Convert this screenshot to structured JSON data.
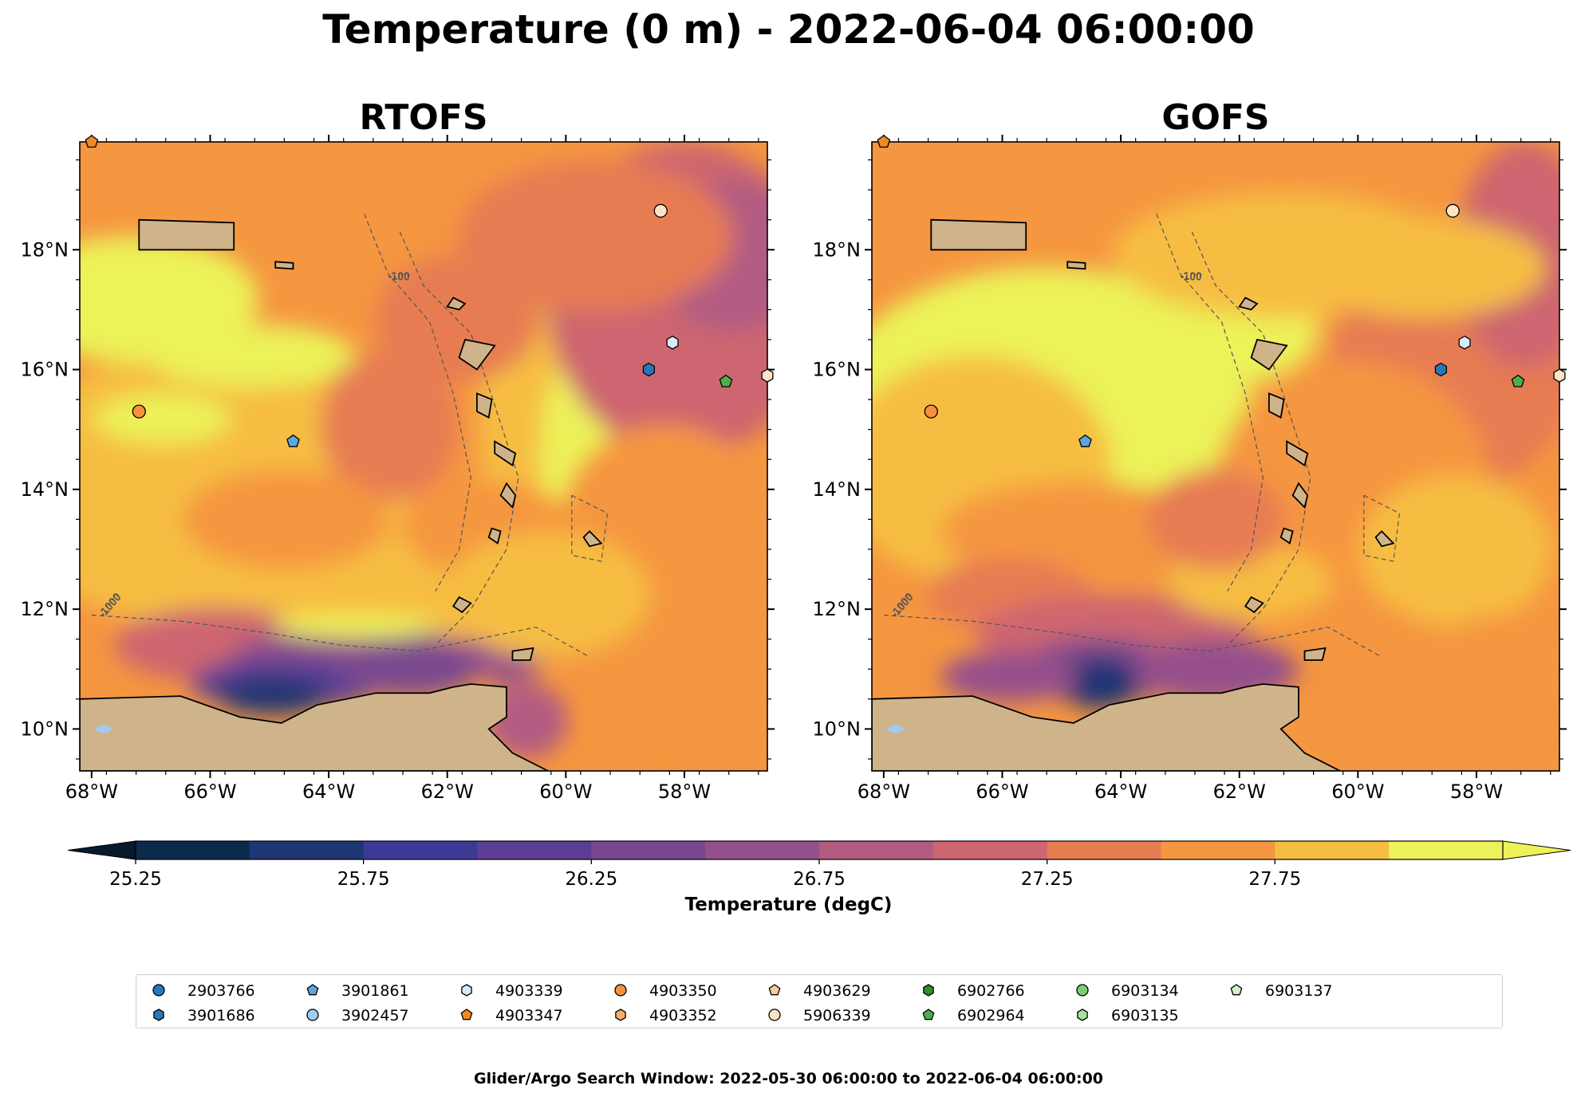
{
  "title": "Temperature (0 m) - 2022-06-04 06:00:00",
  "panels": [
    {
      "title": "RTOFS"
    },
    {
      "title": "GOFS"
    }
  ],
  "map": {
    "lon_range": [
      -68.2,
      -56.6
    ],
    "lat_range": [
      9.3,
      19.8
    ],
    "lon_ticks": [
      -68,
      -66,
      -64,
      -62,
      -60,
      -58
    ],
    "lon_tick_labels": [
      "68°W",
      "66°W",
      "64°W",
      "62°W",
      "60°W",
      "58°W"
    ],
    "lat_ticks": [
      10,
      12,
      14,
      16,
      18
    ],
    "lat_tick_labels": [
      "10°N",
      "12°N",
      "14°N",
      "16°N",
      "18°N"
    ],
    "contour_labels": [
      "-1000",
      "-100"
    ],
    "land_color": "#cfb38a",
    "water_color": "#a6c8ec"
  },
  "colorbar": {
    "label": "Temperature (degC)",
    "tick_values": [
      25.25,
      25.75,
      26.25,
      26.75,
      27.25,
      27.75
    ],
    "tick_labels": [
      "25.25",
      "25.75",
      "26.25",
      "26.75",
      "27.25",
      "27.75"
    ],
    "levels": [
      25.25,
      25.5,
      25.75,
      26.0,
      26.25,
      26.5,
      26.75,
      27.0,
      27.25,
      27.5,
      27.75,
      28.0
    ],
    "colors": [
      "#0c2b4c",
      "#1f3674",
      "#3c3a96",
      "#5c3f94",
      "#79488f",
      "#94508b",
      "#b25c82",
      "#cd6670",
      "#e77c52",
      "#f59640",
      "#f6bd43",
      "#ecf259"
    ],
    "under_color": "#061a2e",
    "over_color": "#ecf259"
  },
  "floats": [
    {
      "id": "2903766",
      "marker": "circle",
      "color": "#2a77b8",
      "rtofs_pos": null
    },
    {
      "id": "3901686",
      "marker": "hexagon",
      "color": "#2a77b8",
      "pos": [
        -58.6,
        16.0
      ]
    },
    {
      "id": "3901861",
      "marker": "pentagon",
      "color": "#5fa4dc",
      "pos": [
        -64.6,
        14.8
      ]
    },
    {
      "id": "3902457",
      "marker": "circle",
      "color": "#a1cdf0",
      "pos": null
    },
    {
      "id": "4903339",
      "marker": "hexagon",
      "color": "#d7ecfa",
      "pos": [
        -58.2,
        16.45
      ]
    },
    {
      "id": "4903347",
      "marker": "pentagon",
      "color": "#f08a24",
      "pos": [
        -68.0,
        19.8
      ]
    },
    {
      "id": "4903350",
      "marker": "circle",
      "color": "#f6923e",
      "pos": [
        -67.2,
        15.3
      ]
    },
    {
      "id": "4903352",
      "marker": "hexagon",
      "color": "#f8ae6b",
      "pos": null
    },
    {
      "id": "4903629",
      "marker": "pentagon",
      "color": "#fbc99a",
      "pos": null
    },
    {
      "id": "5906339",
      "marker": "circle",
      "color": "#fde3c6",
      "pos": [
        -58.4,
        18.65
      ]
    },
    {
      "id": "6902766",
      "marker": "hexagon",
      "color": "#2e8f2e",
      "pos": null
    },
    {
      "id": "6902964",
      "marker": "pentagon",
      "color": "#4caf4c",
      "pos": [
        -57.3,
        15.8
      ]
    },
    {
      "id": "6903134",
      "marker": "circle",
      "color": "#79cf6f",
      "pos": null
    },
    {
      "id": "6903135",
      "marker": "hexagon",
      "color": "#a5e39a",
      "pos": null
    },
    {
      "id": "6903137",
      "marker": "pentagon",
      "color": "#cff3c6",
      "pos": null
    }
  ],
  "edge_float": {
    "marker": "hexagon",
    "color": "#fde3c6",
    "pos": [
      -56.6,
      15.9
    ]
  },
  "footer": "Glider/Argo Search Window: 2022-05-30 06:00:00 to 2022-06-04 06:00:00"
}
